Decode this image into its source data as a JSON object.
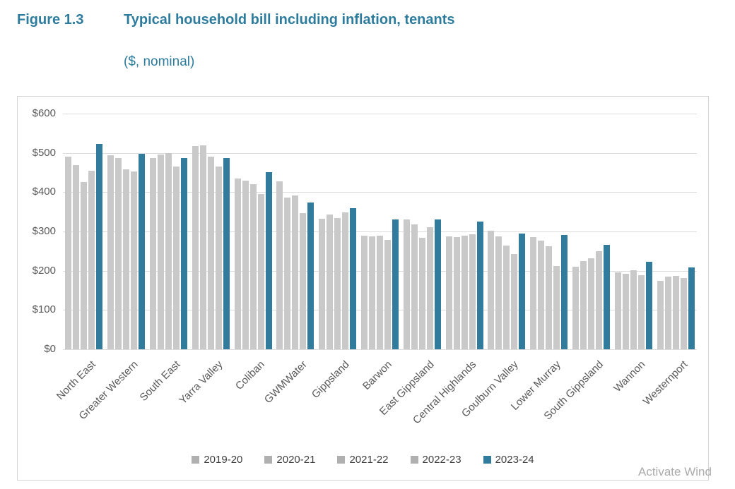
{
  "figure": {
    "label": "Figure 1.3",
    "title": "Typical household bill including inflation, tenants",
    "subtitle": "($, nominal)"
  },
  "chart_data": {
    "type": "bar",
    "title": "Typical household bill including inflation, tenants",
    "units": "$, nominal",
    "categories": [
      "North East",
      "Greater Western",
      "South East",
      "Yarra Valley",
      "Coliban",
      "GWMWater",
      "Gippsland",
      "Barwon",
      "East Gippsland",
      "Central Highlands",
      "Goulburn Valley",
      "Lower Murray",
      "South Gippsland",
      "Wannon",
      "Westernport"
    ],
    "series": [
      {
        "name": "2019-20",
        "color": "#c9c9c9",
        "marker_color": "#b0b0b0",
        "values": [
          490,
          494,
          487,
          517,
          434,
          427,
          332,
          290,
          330,
          288,
          301,
          286,
          211,
          196,
          174
        ]
      },
      {
        "name": "2020-21",
        "color": "#c9c9c9",
        "marker_color": "#b0b0b0",
        "values": [
          469,
          487,
          495,
          520,
          430,
          386,
          344,
          288,
          318,
          286,
          287,
          277,
          225,
          193,
          185
        ]
      },
      {
        "name": "2021-22",
        "color": "#c9c9c9",
        "marker_color": "#b0b0b0",
        "values": [
          426,
          458,
          499,
          491,
          420,
          391,
          334,
          290,
          284,
          290,
          264,
          263,
          231,
          202,
          187
        ]
      },
      {
        "name": "2022-23",
        "color": "#c9c9c9",
        "marker_color": "#b0b0b0",
        "values": [
          455,
          452,
          466,
          466,
          395,
          347,
          349,
          278,
          311,
          293,
          243,
          212,
          249,
          189,
          182
        ]
      },
      {
        "name": "2023-24",
        "color": "#317c9c",
        "marker_color": "#317c9c",
        "values": [
          523,
          497,
          486,
          486,
          450,
          374,
          359,
          331,
          330,
          325,
          295,
          291,
          265,
          222,
          209
        ]
      }
    ],
    "xlabel": "",
    "ylabel": "$",
    "ylim": [
      0,
      600
    ],
    "ytick_step": 100,
    "ytick_labels": [
      "$0",
      "$100",
      "$200",
      "$300",
      "$400",
      "$500",
      "$600"
    ],
    "grid": true,
    "legend_position": "bottom"
  },
  "colors": {
    "accent_teal": "#317c9c",
    "bar_gray": "#c9c9c9",
    "heading_teal": "#2d7c9e",
    "axis_text": "#595959",
    "grid_line": "#dcdcdc"
  },
  "watermark": "Activate Wind"
}
